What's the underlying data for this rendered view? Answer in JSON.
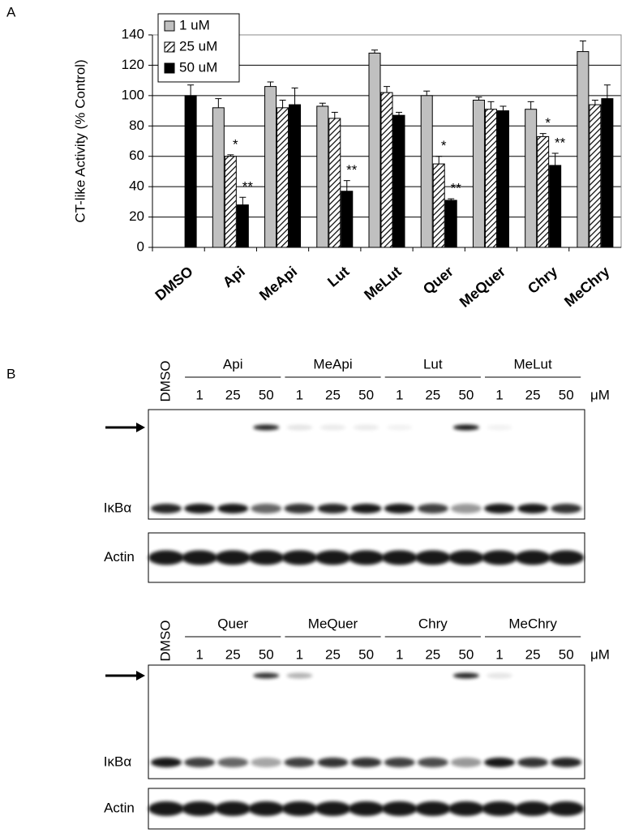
{
  "chart_data": {
    "type": "bar",
    "panel_label": "A",
    "y_label": "CT-like Activity (% Control)",
    "categories": [
      "DMSO",
      "Api",
      "MeApi",
      "Lut",
      "MeLut",
      "Quer",
      "MeQuer",
      "Chry",
      "MeChry"
    ],
    "series": [
      {
        "name": "1 uM",
        "color": "#c0c0c0",
        "hatch": false,
        "values": [
          null,
          92,
          106,
          93,
          128,
          100,
          97,
          91,
          129
        ],
        "errors": [
          null,
          6,
          3,
          2,
          2,
          3,
          2,
          5,
          7
        ],
        "significance": [
          null,
          null,
          null,
          null,
          null,
          null,
          null,
          null,
          null
        ]
      },
      {
        "name": "25 uM",
        "color": "#ffffff",
        "hatch": true,
        "values": [
          null,
          60,
          92,
          85,
          102,
          55,
          91,
          73,
          94
        ],
        "errors": [
          null,
          1,
          5,
          4,
          4,
          5,
          5,
          2,
          3
        ],
        "significance": [
          null,
          "*",
          null,
          null,
          null,
          "*",
          null,
          "*",
          null
        ]
      },
      {
        "name": "50 uM",
        "color": "#000000",
        "hatch": false,
        "values": [
          100,
          28,
          94,
          37,
          87,
          31,
          90,
          54,
          98
        ],
        "errors": [
          7,
          5,
          11,
          7,
          2,
          1,
          3,
          8,
          9
        ],
        "significance": [
          null,
          "**",
          null,
          "**",
          null,
          "**",
          null,
          "**",
          null
        ]
      }
    ],
    "ylim": [
      0,
      140
    ],
    "yticks": [
      0,
      20,
      40,
      60,
      80,
      100,
      120,
      140
    ],
    "grid": true,
    "legend": "top-left"
  },
  "panel_b": {
    "label": "B",
    "blots": [
      {
        "control": "DMSO",
        "unit": "μM",
        "band_labels": [
          "IκBα",
          "Actin"
        ],
        "groups": [
          {
            "name": "Api",
            "doses": [
              1,
              25,
              50
            ]
          },
          {
            "name": "MeApi",
            "doses": [
              1,
              25,
              50
            ]
          },
          {
            "name": "Lut",
            "doses": [
              1,
              25,
              50
            ]
          },
          {
            "name": "MeLut",
            "doses": [
              1,
              25,
              50
            ]
          }
        ]
      },
      {
        "control": "DMSO",
        "unit": "μM",
        "band_labels": [
          "IκBα",
          "Actin"
        ],
        "groups": [
          {
            "name": "Quer",
            "doses": [
              1,
              25,
              50
            ]
          },
          {
            "name": "MeQuer",
            "doses": [
              1,
              25,
              50
            ]
          },
          {
            "name": "Chry",
            "doses": [
              1,
              25,
              50
            ]
          },
          {
            "name": "MeChry",
            "doses": [
              1,
              25,
              50
            ]
          }
        ]
      }
    ]
  }
}
